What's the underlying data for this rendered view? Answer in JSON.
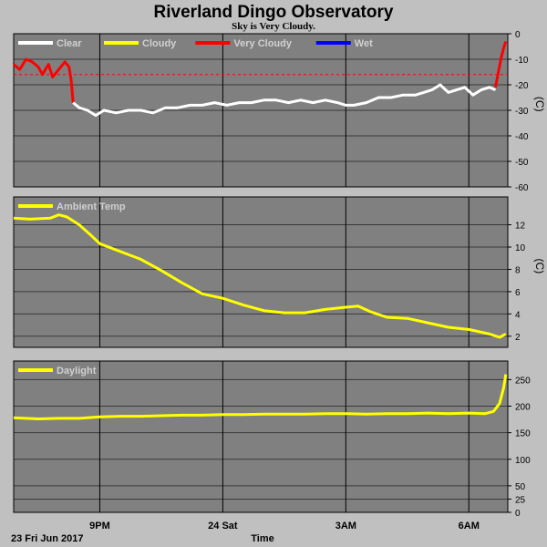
{
  "title": "Riverland Dingo Observatory",
  "subtitle": "Sky is Very Cloudy.",
  "footer": {
    "date": "23 Fri Jun 2017",
    "xlabel": "Time"
  },
  "x_ticks": [
    {
      "label": "9PM",
      "t": 3.0
    },
    {
      "label": "24 Sat",
      "t": 6.0
    },
    {
      "label": "3AM",
      "t": 9.0
    },
    {
      "label": "6AM",
      "t": 12.0
    }
  ],
  "x_range": [
    0.9,
    12.95
  ],
  "colors": {
    "clear": "#ffffff",
    "cloudy": "#ffff00",
    "very_cloudy": "#ff0000",
    "wet": "#0000ff",
    "plot_bg": "#808080"
  },
  "chart_data": [
    {
      "type": "line",
      "title": "",
      "ylabel": "(C)",
      "ylim": [
        -60,
        0
      ],
      "yticks": [
        0,
        -10,
        -20,
        -30,
        -40,
        -50,
        -60
      ],
      "threshold": -16,
      "legend": [
        "Clear",
        "Cloudy",
        "Very Cloudy",
        "Wet"
      ],
      "series": [
        {
          "name": "Very Cloudy",
          "x": [
            0.9,
            1.05,
            1.2,
            1.35,
            1.5,
            1.6,
            1.75,
            1.85,
            2.0,
            2.15,
            2.25,
            2.3,
            2.35
          ],
          "y": [
            -12,
            -14,
            -10,
            -11,
            -13,
            -16,
            -12,
            -17,
            -14,
            -11,
            -13,
            -18,
            -27
          ]
        },
        {
          "name": "Clear",
          "x": [
            2.35,
            2.5,
            2.7,
            2.9,
            3.1,
            3.4,
            3.7,
            4.0,
            4.3,
            4.6,
            4.9,
            5.2,
            5.5,
            5.8,
            6.1,
            6.4,
            6.7,
            7.0,
            7.3,
            7.6,
            7.9,
            8.2,
            8.5,
            8.8,
            9.0,
            9.2,
            9.5,
            9.8,
            10.1,
            10.4,
            10.7,
            10.9,
            11.1,
            11.3,
            11.5,
            11.7,
            11.9,
            12.1,
            12.3,
            12.5,
            12.65
          ],
          "y": [
            -27,
            -29,
            -30,
            -32,
            -30,
            -31,
            -30,
            -30,
            -31,
            -29,
            -29,
            -28,
            -28,
            -27,
            -28,
            -27,
            -27,
            -26,
            -26,
            -27,
            -26,
            -27,
            -26,
            -27,
            -28,
            -28,
            -27,
            -25,
            -25,
            -24,
            -24,
            -23,
            -22,
            -20,
            -23,
            -22,
            -21,
            -24,
            -22,
            -21,
            -22
          ]
        },
        {
          "name": "Very Cloudy",
          "x": [
            12.65,
            12.72,
            12.78,
            12.84,
            12.9
          ],
          "y": [
            -21,
            -15,
            -10,
            -6,
            -3
          ]
        }
      ]
    },
    {
      "type": "line",
      "title": "",
      "ylabel": "(C)",
      "ylim": [
        1.0,
        14.5
      ],
      "yticks": [
        12,
        10,
        8,
        6,
        4,
        2
      ],
      "legend": [
        "Ambient Temp"
      ],
      "series": [
        {
          "name": "Ambient Temp",
          "x": [
            0.9,
            1.3,
            1.8,
            2.0,
            2.2,
            2.5,
            2.8,
            3.0,
            3.5,
            4.0,
            4.5,
            5.0,
            5.5,
            6.0,
            6.5,
            7.0,
            7.5,
            8.0,
            8.5,
            9.0,
            9.3,
            9.6,
            10.0,
            10.5,
            11.0,
            11.5,
            12.0,
            12.5,
            12.75,
            12.9
          ],
          "y": [
            12.6,
            12.5,
            12.6,
            12.9,
            12.7,
            12.0,
            11.0,
            10.3,
            9.6,
            8.9,
            7.9,
            6.8,
            5.8,
            5.4,
            4.8,
            4.3,
            4.1,
            4.1,
            4.4,
            4.6,
            4.7,
            4.2,
            3.7,
            3.6,
            3.2,
            2.8,
            2.6,
            2.2,
            1.9,
            2.2
          ]
        }
      ]
    },
    {
      "type": "line",
      "title": "",
      "ylabel": "",
      "ylim": [
        0,
        285
      ],
      "yticks": [
        250,
        200,
        150,
        100,
        50,
        25,
        0
      ],
      "legend": [
        "Daylight"
      ],
      "series": [
        {
          "name": "Daylight",
          "x": [
            0.9,
            1.5,
            2.0,
            2.5,
            3.0,
            3.5,
            4.0,
            4.5,
            5.0,
            5.5,
            6.0,
            6.5,
            7.0,
            7.5,
            8.0,
            8.5,
            9.0,
            9.5,
            10.0,
            10.5,
            11.0,
            11.5,
            12.0,
            12.4,
            12.6,
            12.75,
            12.85,
            12.9
          ],
          "y": [
            178,
            176,
            177,
            177,
            180,
            181,
            181,
            182,
            183,
            183,
            184,
            184,
            185,
            185,
            185,
            186,
            186,
            185,
            186,
            186,
            187,
            186,
            187,
            186,
            190,
            205,
            235,
            260
          ]
        }
      ]
    }
  ]
}
